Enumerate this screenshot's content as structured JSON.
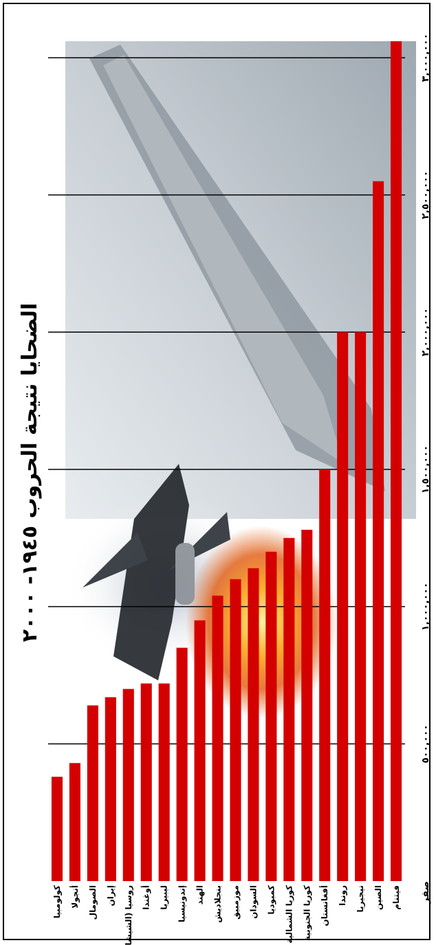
{
  "chart_data": {
    "type": "bar",
    "orientation": "horizontal",
    "title": "الضحايا نتيجة الحروب ١٩٤٥- ٢٠٠٠",
    "categories": [
      "كولومبيا",
      "أنجولا",
      "الصومال",
      "إيران",
      "روسيا (الشيشان)",
      "أوغندا",
      "ليبيريا",
      "إندونيسيا",
      "الهند",
      "بنجلاديش",
      "موزمبيق",
      "السودان",
      "كمبوديا",
      "كوريا الشمالية",
      "كوريا الجنوبية",
      "أفغانستان",
      "روندا",
      "نيجيريا",
      "الصين",
      "فيتنام"
    ],
    "values": [
      380000,
      430000,
      640000,
      670000,
      700000,
      720000,
      720000,
      850000,
      950000,
      1040000,
      1100000,
      1140000,
      1200000,
      1250000,
      1280000,
      1500000,
      2000000,
      2000000,
      2550000,
      3060000
    ],
    "xlim": [
      0,
      3060000
    ],
    "ticks": [
      0,
      500000,
      1000000,
      1500000,
      2000000,
      2500000,
      3000000
    ],
    "tick_labels": [
      "صفر",
      "٥٠٠,٠٠٠",
      "١,٠٠٠,٠٠٠",
      "١,٥٠٠,٠٠٠",
      "٢,٠٠٠,٠٠٠",
      "٢,٥٠٠,٠٠٠",
      "٣,٠٠٠,٠٠٠"
    ],
    "grid": true,
    "bar_color": "#d40000",
    "background": "photo of aircraft carrier, jet and explosion"
  }
}
